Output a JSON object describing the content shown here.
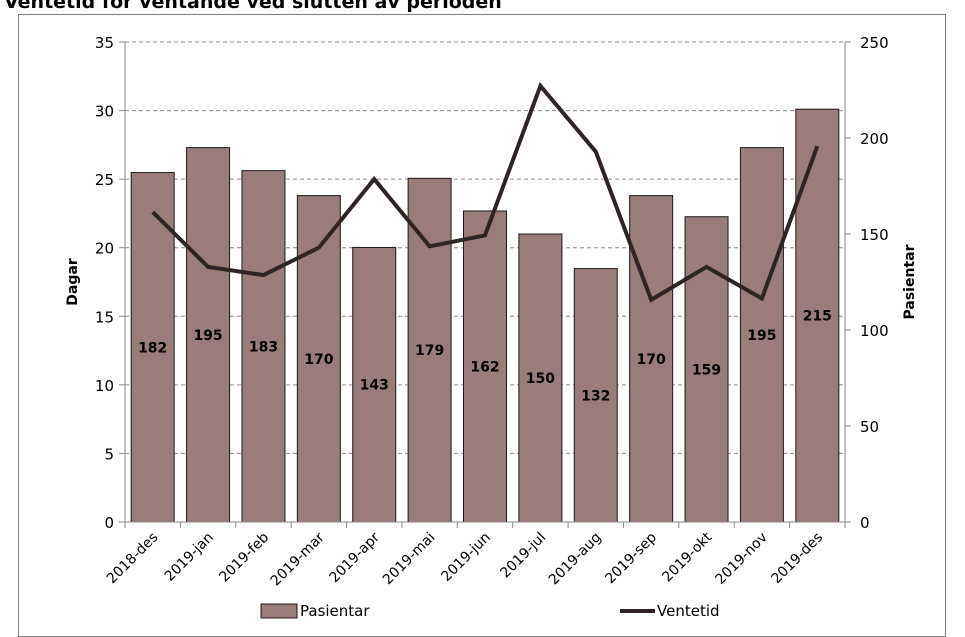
{
  "chart_data": {
    "type": "bar",
    "title": "Ventetid for ventande ved slutten av perioden",
    "categories": [
      "2018-des",
      "2019-jan",
      "2019-feb",
      "2019-mar",
      "2019-apr",
      "2019-mai",
      "2019-jun",
      "2019-jul",
      "2019-aug",
      "2019-sep",
      "2019-okt",
      "2019-nov",
      "2019-des"
    ],
    "series": [
      {
        "name": "Pasientar",
        "type": "bar",
        "axis": "right",
        "values": [
          182,
          195,
          183,
          170,
          143,
          179,
          162,
          150,
          132,
          170,
          159,
          195,
          215
        ],
        "data_labels": [
          "182",
          "195",
          "183",
          "170",
          "143",
          "179",
          "162",
          "150",
          "132",
          "170",
          "159",
          "195",
          "215"
        ]
      },
      {
        "name": "Ventetid",
        "type": "line",
        "axis": "left",
        "values": [
          22.6,
          18.6,
          18.0,
          20.0,
          25.0,
          20.1,
          20.9,
          31.8,
          27.0,
          16.2,
          18.6,
          16.3,
          27.4
        ]
      }
    ],
    "ylabel": "Dagar",
    "ylim": [
      0,
      35
    ],
    "yticks": [
      "0",
      "5",
      "10",
      "15",
      "20",
      "25",
      "30",
      "35"
    ],
    "y2label": "Pasientar",
    "y2lim": [
      0,
      250
    ],
    "y2ticks": [
      "0",
      "50",
      "100",
      "150",
      "200",
      "250"
    ],
    "grid": true,
    "legend": "bottom",
    "colors": {
      "bar_fill": "#9a7c7a",
      "bar_stroke": "#1a1a1a",
      "line": "#2e2424",
      "grid": "#8c8c8c",
      "axis": "#888888",
      "frame": "#7f7f7f"
    }
  }
}
